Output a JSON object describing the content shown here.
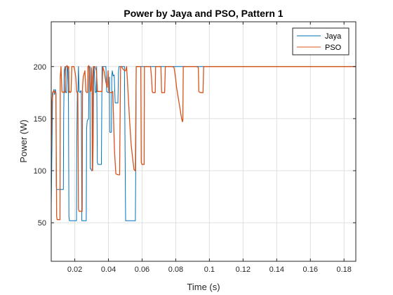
{
  "chart_data": {
    "type": "line",
    "title": "Power by Jaya and PSO, Pattern 1",
    "xlabel": "Time (s)",
    "ylabel": "Power (W)",
    "xlim": [
      0.006,
      0.187
    ],
    "ylim": [
      13,
      243
    ],
    "xticks": [
      0.02,
      0.04,
      0.06,
      0.08,
      0.1,
      0.12,
      0.14,
      0.16,
      0.18
    ],
    "xtick_labels": [
      "0.02",
      "0.04",
      "0.06",
      "0.08",
      "0.1",
      "0.12",
      "0.14",
      "0.16",
      "0.18"
    ],
    "yticks": [
      50,
      100,
      150,
      200
    ],
    "ytick_labels": [
      "50",
      "100",
      "150",
      "200"
    ],
    "grid": true,
    "legend_position": "top-right",
    "series": [
      {
        "name": "Jaya",
        "color": "#0072BD",
        "points": [
          [
            0.006,
            65
          ],
          [
            0.0064,
            120
          ],
          [
            0.0068,
            170
          ],
          [
            0.0072,
            176
          ],
          [
            0.0076,
            178
          ],
          [
            0.008,
            173
          ],
          [
            0.0084,
            178
          ],
          [
            0.0088,
            175
          ],
          [
            0.009,
            85
          ],
          [
            0.0092,
            82
          ],
          [
            0.0105,
            82
          ],
          [
            0.0118,
            82
          ],
          [
            0.0132,
            82
          ],
          [
            0.0134,
            150
          ],
          [
            0.0137,
            196
          ],
          [
            0.0142,
            200
          ],
          [
            0.0145,
            176
          ],
          [
            0.0148,
            175
          ],
          [
            0.0152,
            175
          ],
          [
            0.0155,
            200
          ],
          [
            0.0159,
            198
          ],
          [
            0.0162,
            180
          ],
          [
            0.0165,
            56
          ],
          [
            0.0168,
            52
          ],
          [
            0.0185,
            52
          ],
          [
            0.02,
            52
          ],
          [
            0.021,
            52
          ],
          [
            0.0212,
            120
          ],
          [
            0.0215,
            176
          ],
          [
            0.0219,
            176
          ],
          [
            0.0222,
            200
          ],
          [
            0.0225,
            176
          ],
          [
            0.0232,
            175
          ],
          [
            0.0236,
            177
          ],
          [
            0.0239,
            176
          ],
          [
            0.0242,
            52
          ],
          [
            0.0248,
            52
          ],
          [
            0.026,
            52
          ],
          [
            0.0268,
            52
          ],
          [
            0.027,
            140
          ],
          [
            0.0274,
            148
          ],
          [
            0.0278,
            149
          ],
          [
            0.0282,
            150
          ],
          [
            0.0285,
            200
          ],
          [
            0.0288,
            200
          ],
          [
            0.029,
            200
          ],
          [
            0.0292,
            102
          ],
          [
            0.0295,
            102
          ],
          [
            0.03,
            100
          ],
          [
            0.0305,
            100
          ],
          [
            0.0308,
            196
          ],
          [
            0.031,
            200
          ],
          [
            0.0315,
            200
          ],
          [
            0.0322,
            175
          ],
          [
            0.0328,
            176
          ],
          [
            0.033,
            200
          ],
          [
            0.0334,
            108
          ],
          [
            0.0338,
            106
          ],
          [
            0.0346,
            106
          ],
          [
            0.0354,
            106
          ],
          [
            0.0358,
            106
          ],
          [
            0.0362,
            200
          ],
          [
            0.0366,
            200
          ],
          [
            0.0372,
            200
          ],
          [
            0.038,
            200
          ],
          [
            0.0385,
            200
          ],
          [
            0.039,
            176
          ],
          [
            0.0398,
            175
          ],
          [
            0.0404,
            175
          ],
          [
            0.0406,
            190
          ],
          [
            0.0408,
            137
          ],
          [
            0.0413,
            137
          ],
          [
            0.0418,
            137
          ],
          [
            0.042,
            190
          ],
          [
            0.0423,
            196
          ],
          [
            0.0428,
            191
          ],
          [
            0.0434,
            192
          ],
          [
            0.044,
            165
          ],
          [
            0.0443,
            165
          ],
          [
            0.045,
            165
          ],
          [
            0.0456,
            165
          ],
          [
            0.046,
            196
          ],
          [
            0.0463,
            200
          ],
          [
            0.0469,
            200
          ],
          [
            0.0476,
            200
          ],
          [
            0.0484,
            200
          ],
          [
            0.049,
            200
          ],
          [
            0.0495,
            200
          ],
          [
            0.0502,
            52
          ],
          [
            0.0515,
            52
          ],
          [
            0.053,
            52
          ],
          [
            0.0545,
            52
          ],
          [
            0.0556,
            52
          ],
          [
            0.056,
            52
          ],
          [
            0.0563,
            120
          ],
          [
            0.0565,
            200
          ],
          [
            0.0575,
            200
          ],
          [
            0.06,
            200
          ],
          [
            0.0625,
            200
          ],
          [
            0.065,
            200
          ],
          [
            0.0675,
            200
          ],
          [
            0.07,
            200
          ],
          [
            0.072,
            200
          ],
          [
            0.075,
            200
          ],
          [
            0.08,
            200
          ],
          [
            0.085,
            200
          ],
          [
            0.09,
            200
          ],
          [
            0.095,
            200
          ],
          [
            0.1,
            200
          ],
          [
            0.11,
            200
          ],
          [
            0.12,
            200
          ],
          [
            0.13,
            200
          ],
          [
            0.14,
            200
          ],
          [
            0.15,
            200
          ],
          [
            0.16,
            200
          ],
          [
            0.17,
            200
          ],
          [
            0.18,
            200
          ],
          [
            0.187,
            200
          ]
        ]
      },
      {
        "name": "PSO",
        "color": "#D95319",
        "points": [
          [
            0.006,
            120
          ],
          [
            0.0064,
            165
          ],
          [
            0.0068,
            175
          ],
          [
            0.0072,
            176
          ],
          [
            0.0076,
            177
          ],
          [
            0.008,
            175
          ],
          [
            0.0084,
            176
          ],
          [
            0.0088,
            174
          ],
          [
            0.009,
            120
          ],
          [
            0.0092,
            56
          ],
          [
            0.0095,
            53
          ],
          [
            0.0105,
            53
          ],
          [
            0.0112,
            53
          ],
          [
            0.0114,
            190
          ],
          [
            0.0118,
            200
          ],
          [
            0.0124,
            176
          ],
          [
            0.013,
            175
          ],
          [
            0.0138,
            176
          ],
          [
            0.0142,
            175
          ],
          [
            0.0146,
            200
          ],
          [
            0.015,
            200
          ],
          [
            0.0154,
            201
          ],
          [
            0.0158,
            200
          ],
          [
            0.016,
            198
          ],
          [
            0.0164,
            200
          ],
          [
            0.0166,
            175
          ],
          [
            0.017,
            176
          ],
          [
            0.0174,
            175
          ],
          [
            0.0178,
            176
          ],
          [
            0.0182,
            200
          ],
          [
            0.0185,
            200
          ],
          [
            0.019,
            200
          ],
          [
            0.0195,
            200
          ],
          [
            0.02,
            196
          ],
          [
            0.0206,
            190
          ],
          [
            0.0211,
            176
          ],
          [
            0.0214,
            175
          ],
          [
            0.0218,
            175
          ],
          [
            0.022,
            120
          ],
          [
            0.0222,
            63
          ],
          [
            0.0226,
            61
          ],
          [
            0.0236,
            61
          ],
          [
            0.0244,
            61
          ],
          [
            0.0246,
            180
          ],
          [
            0.025,
            190
          ],
          [
            0.0255,
            193
          ],
          [
            0.026,
            196
          ],
          [
            0.0266,
            176
          ],
          [
            0.0272,
            175
          ],
          [
            0.0276,
            175
          ],
          [
            0.0278,
            200
          ],
          [
            0.0283,
            201
          ],
          [
            0.0288,
            188
          ],
          [
            0.0292,
            176
          ],
          [
            0.0296,
            177
          ],
          [
            0.0298,
            199
          ],
          [
            0.0302,
            190
          ],
          [
            0.0304,
            100
          ],
          [
            0.0306,
            100
          ],
          [
            0.0309,
            130
          ],
          [
            0.0312,
            200
          ],
          [
            0.032,
            200
          ],
          [
            0.0328,
            196
          ],
          [
            0.0335,
            176
          ],
          [
            0.0345,
            176
          ],
          [
            0.0355,
            176
          ],
          [
            0.0362,
            176
          ],
          [
            0.0366,
            200
          ],
          [
            0.0375,
            195
          ],
          [
            0.0385,
            185
          ],
          [
            0.0393,
            180
          ],
          [
            0.0398,
            196
          ],
          [
            0.0402,
            176
          ],
          [
            0.0408,
            175
          ],
          [
            0.0414,
            175
          ],
          [
            0.0418,
            175
          ],
          [
            0.0426,
            176
          ],
          [
            0.0432,
            140
          ],
          [
            0.0436,
            118
          ],
          [
            0.0444,
            97
          ],
          [
            0.0458,
            96
          ],
          [
            0.0466,
            96
          ],
          [
            0.0472,
            200
          ],
          [
            0.0478,
            200
          ],
          [
            0.0484,
            198
          ],
          [
            0.049,
            197
          ],
          [
            0.0496,
            196
          ],
          [
            0.0502,
            196
          ],
          [
            0.0508,
            200
          ],
          [
            0.0515,
            180
          ],
          [
            0.0525,
            150
          ],
          [
            0.0535,
            125
          ],
          [
            0.0545,
            110
          ],
          [
            0.0552,
            101
          ],
          [
            0.0558,
            100
          ],
          [
            0.056,
            100
          ],
          [
            0.0565,
            200
          ],
          [
            0.0575,
            200
          ],
          [
            0.0585,
            200
          ],
          [
            0.0592,
            200
          ],
          [
            0.0595,
            108
          ],
          [
            0.0599,
            106
          ],
          [
            0.0606,
            106
          ],
          [
            0.0612,
            106
          ],
          [
            0.0614,
            200
          ],
          [
            0.063,
            200
          ],
          [
            0.0645,
            200
          ],
          [
            0.065,
            200
          ],
          [
            0.0656,
            190
          ],
          [
            0.066,
            176
          ],
          [
            0.0664,
            175
          ],
          [
            0.067,
            175
          ],
          [
            0.0675,
            175
          ],
          [
            0.0678,
            175
          ],
          [
            0.068,
            200
          ],
          [
            0.069,
            200
          ],
          [
            0.07,
            200
          ],
          [
            0.0712,
            200
          ],
          [
            0.0716,
            175
          ],
          [
            0.072,
            175
          ],
          [
            0.0728,
            175
          ],
          [
            0.0734,
            175
          ],
          [
            0.0738,
            200
          ],
          [
            0.075,
            200
          ],
          [
            0.0765,
            200
          ],
          [
            0.078,
            200
          ],
          [
            0.079,
            199
          ],
          [
            0.0798,
            190
          ],
          [
            0.0805,
            180
          ],
          [
            0.0815,
            170
          ],
          [
            0.0825,
            160
          ],
          [
            0.0835,
            150
          ],
          [
            0.084,
            147
          ],
          [
            0.0842,
            148
          ],
          [
            0.0845,
            200
          ],
          [
            0.086,
            200
          ],
          [
            0.09,
            200
          ],
          [
            0.0925,
            200
          ],
          [
            0.0934,
            199
          ],
          [
            0.0937,
            176
          ],
          [
            0.0945,
            175
          ],
          [
            0.0955,
            175
          ],
          [
            0.0962,
            175
          ],
          [
            0.0966,
            200
          ],
          [
            0.1,
            200
          ],
          [
            0.11,
            200
          ],
          [
            0.12,
            200
          ],
          [
            0.13,
            200
          ],
          [
            0.14,
            200
          ],
          [
            0.15,
            200
          ],
          [
            0.16,
            200
          ],
          [
            0.17,
            200
          ],
          [
            0.18,
            200
          ],
          [
            0.187,
            200
          ]
        ]
      }
    ]
  }
}
